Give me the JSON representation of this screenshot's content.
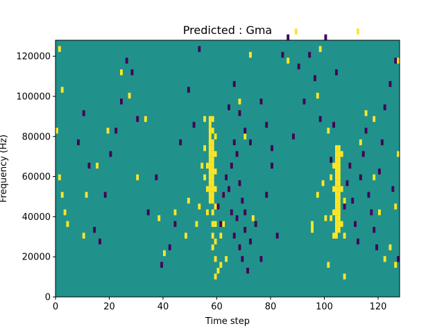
{
  "chart_data": {
    "type": "heatmap",
    "title": "Predicted : Gma",
    "xlabel": "Time step",
    "ylabel": "Frequency (Hz)",
    "xlim": [
      0,
      128
    ],
    "ylim": [
      0,
      128000
    ],
    "xticks": [
      0,
      20,
      40,
      60,
      80,
      100,
      120
    ],
    "yticks": [
      0,
      20000,
      40000,
      60000,
      80000,
      100000,
      120000
    ],
    "xtick_labels": [
      "0",
      "20",
      "40",
      "60",
      "80",
      "100",
      "120"
    ],
    "ytick_labels": [
      "0",
      "20000",
      "40000",
      "60000",
      "80000",
      "100000",
      "120000"
    ],
    "grid": false,
    "colors": {
      "background": "#21918c",
      "high": "#fde725",
      "low": "#440154"
    },
    "background_value": 0,
    "high_cells": [
      [
        57,
        16
      ],
      [
        57,
        17
      ],
      [
        57,
        18
      ],
      [
        57,
        19
      ],
      [
        57,
        20
      ],
      [
        57,
        21
      ],
      [
        57,
        22
      ],
      [
        57,
        23
      ],
      [
        57,
        24
      ],
      [
        57,
        25
      ],
      [
        57,
        26
      ],
      [
        57,
        27
      ],
      [
        57,
        28
      ],
      [
        57,
        29
      ],
      [
        57,
        30
      ],
      [
        58,
        8
      ],
      [
        58,
        10
      ],
      [
        58,
        12
      ],
      [
        58,
        14
      ],
      [
        58,
        16
      ],
      [
        58,
        17
      ],
      [
        58,
        18
      ],
      [
        58,
        19
      ],
      [
        58,
        20
      ],
      [
        58,
        21
      ],
      [
        58,
        22
      ],
      [
        58,
        23
      ],
      [
        58,
        24
      ],
      [
        58,
        25
      ],
      [
        58,
        26
      ],
      [
        58,
        28
      ],
      [
        58,
        30
      ],
      [
        59,
        3
      ],
      [
        59,
        6
      ],
      [
        59,
        9
      ],
      [
        59,
        12
      ],
      [
        59,
        15
      ],
      [
        59,
        18
      ],
      [
        59,
        21
      ],
      [
        59,
        24
      ],
      [
        59,
        27
      ],
      [
        56,
        14
      ],
      [
        56,
        18
      ],
      [
        56,
        22
      ],
      [
        55,
        20
      ],
      [
        55,
        25
      ],
      [
        54,
        22
      ],
      [
        60,
        4
      ],
      [
        61,
        5
      ],
      [
        61,
        10
      ],
      [
        62,
        12
      ],
      [
        62,
        17
      ],
      [
        63,
        6
      ],
      [
        104,
        10
      ],
      [
        104,
        11
      ],
      [
        104,
        12
      ],
      [
        104,
        13
      ],
      [
        104,
        14
      ],
      [
        104,
        15
      ],
      [
        104,
        16
      ],
      [
        104,
        17
      ],
      [
        104,
        18
      ],
      [
        104,
        19
      ],
      [
        104,
        20
      ],
      [
        104,
        21
      ],
      [
        104,
        22
      ],
      [
        104,
        23
      ],
      [
        104,
        24
      ],
      [
        104,
        25
      ],
      [
        105,
        11
      ],
      [
        105,
        12
      ],
      [
        105,
        13
      ],
      [
        105,
        14
      ],
      [
        105,
        15
      ],
      [
        105,
        16
      ],
      [
        105,
        17
      ],
      [
        105,
        18
      ],
      [
        105,
        19
      ],
      [
        105,
        20
      ],
      [
        105,
        21
      ],
      [
        105,
        22
      ],
      [
        105,
        23
      ],
      [
        105,
        24
      ],
      [
        105,
        25
      ],
      [
        103,
        10
      ],
      [
        103,
        14
      ],
      [
        103,
        18
      ],
      [
        103,
        22
      ],
      [
        102,
        13
      ],
      [
        102,
        20
      ],
      [
        106,
        12
      ],
      [
        106,
        18
      ],
      [
        106,
        24
      ],
      [
        107,
        10
      ],
      [
        107,
        16
      ],
      [
        1,
        42
      ],
      [
        2,
        35
      ],
      [
        0,
        28
      ],
      [
        1,
        20
      ],
      [
        2,
        17
      ],
      [
        3,
        14
      ],
      [
        4,
        12
      ],
      [
        10,
        10
      ],
      [
        11,
        17
      ],
      [
        15,
        22
      ],
      [
        19,
        28
      ],
      [
        24,
        38
      ],
      [
        27,
        34
      ],
      [
        30,
        20
      ],
      [
        33,
        30
      ],
      [
        38,
        13
      ],
      [
        40,
        7
      ],
      [
        44,
        14
      ],
      [
        48,
        10
      ],
      [
        49,
        16
      ],
      [
        52,
        12
      ],
      [
        53,
        15
      ],
      [
        55,
        30
      ],
      [
        68,
        33
      ],
      [
        70,
        27
      ],
      [
        73,
        13
      ],
      [
        72,
        41
      ],
      [
        86,
        40
      ],
      [
        89,
        45
      ],
      [
        95,
        11
      ],
      [
        97,
        17
      ],
      [
        99,
        19
      ],
      [
        100,
        13
      ],
      [
        101,
        5
      ],
      [
        107,
        3
      ],
      [
        113,
        26
      ],
      [
        115,
        31
      ],
      [
        118,
        20
      ],
      [
        120,
        14
      ],
      [
        124,
        8
      ],
      [
        126,
        5
      ],
      [
        127,
        24
      ],
      [
        127,
        40
      ],
      [
        126,
        15
      ],
      [
        122,
        6
      ],
      [
        97,
        34
      ],
      [
        98,
        42
      ],
      [
        101,
        28
      ],
      [
        95,
        12
      ],
      [
        112,
        45
      ],
      [
        118,
        30
      ]
    ],
    "low_cells": [
      [
        60,
        15
      ],
      [
        61,
        12
      ],
      [
        62,
        17
      ],
      [
        63,
        20
      ],
      [
        64,
        18
      ],
      [
        65,
        14
      ],
      [
        66,
        10
      ],
      [
        67,
        13
      ],
      [
        68,
        8
      ],
      [
        69,
        6
      ],
      [
        70,
        11
      ],
      [
        71,
        4
      ],
      [
        65,
        22
      ],
      [
        66,
        26
      ],
      [
        67,
        24
      ],
      [
        68,
        19
      ],
      [
        69,
        16
      ],
      [
        70,
        14
      ],
      [
        72,
        9
      ],
      [
        74,
        12
      ],
      [
        76,
        6
      ],
      [
        78,
        17
      ],
      [
        80,
        22
      ],
      [
        82,
        10
      ],
      [
        64,
        32
      ],
      [
        66,
        36
      ],
      [
        68,
        31
      ],
      [
        70,
        28
      ],
      [
        72,
        26
      ],
      [
        76,
        33
      ],
      [
        78,
        29
      ],
      [
        80,
        25
      ],
      [
        84,
        41
      ],
      [
        86,
        44
      ],
      [
        88,
        27
      ],
      [
        107,
        15
      ],
      [
        108,
        19
      ],
      [
        109,
        22
      ],
      [
        110,
        16
      ],
      [
        111,
        12
      ],
      [
        112,
        9
      ],
      [
        113,
        20
      ],
      [
        114,
        24
      ],
      [
        115,
        28
      ],
      [
        116,
        17
      ],
      [
        117,
        14
      ],
      [
        118,
        11
      ],
      [
        119,
        8
      ],
      [
        120,
        21
      ],
      [
        121,
        26
      ],
      [
        122,
        32
      ],
      [
        124,
        36
      ],
      [
        125,
        18
      ],
      [
        126,
        40
      ],
      [
        127,
        6
      ],
      [
        8,
        26
      ],
      [
        10,
        31
      ],
      [
        12,
        22
      ],
      [
        14,
        11
      ],
      [
        16,
        9
      ],
      [
        18,
        17
      ],
      [
        20,
        24
      ],
      [
        22,
        28
      ],
      [
        24,
        33
      ],
      [
        26,
        40
      ],
      [
        28,
        38
      ],
      [
        30,
        30
      ],
      [
        34,
        14
      ],
      [
        37,
        20
      ],
      [
        39,
        5
      ],
      [
        42,
        8
      ],
      [
        44,
        12
      ],
      [
        46,
        26
      ],
      [
        49,
        35
      ],
      [
        51,
        29
      ],
      [
        53,
        42
      ],
      [
        90,
        39
      ],
      [
        92,
        33
      ],
      [
        94,
        41
      ],
      [
        96,
        37
      ],
      [
        98,
        30
      ],
      [
        100,
        44
      ],
      [
        102,
        23
      ],
      [
        103,
        29
      ],
      [
        104,
        38
      ]
    ]
  }
}
